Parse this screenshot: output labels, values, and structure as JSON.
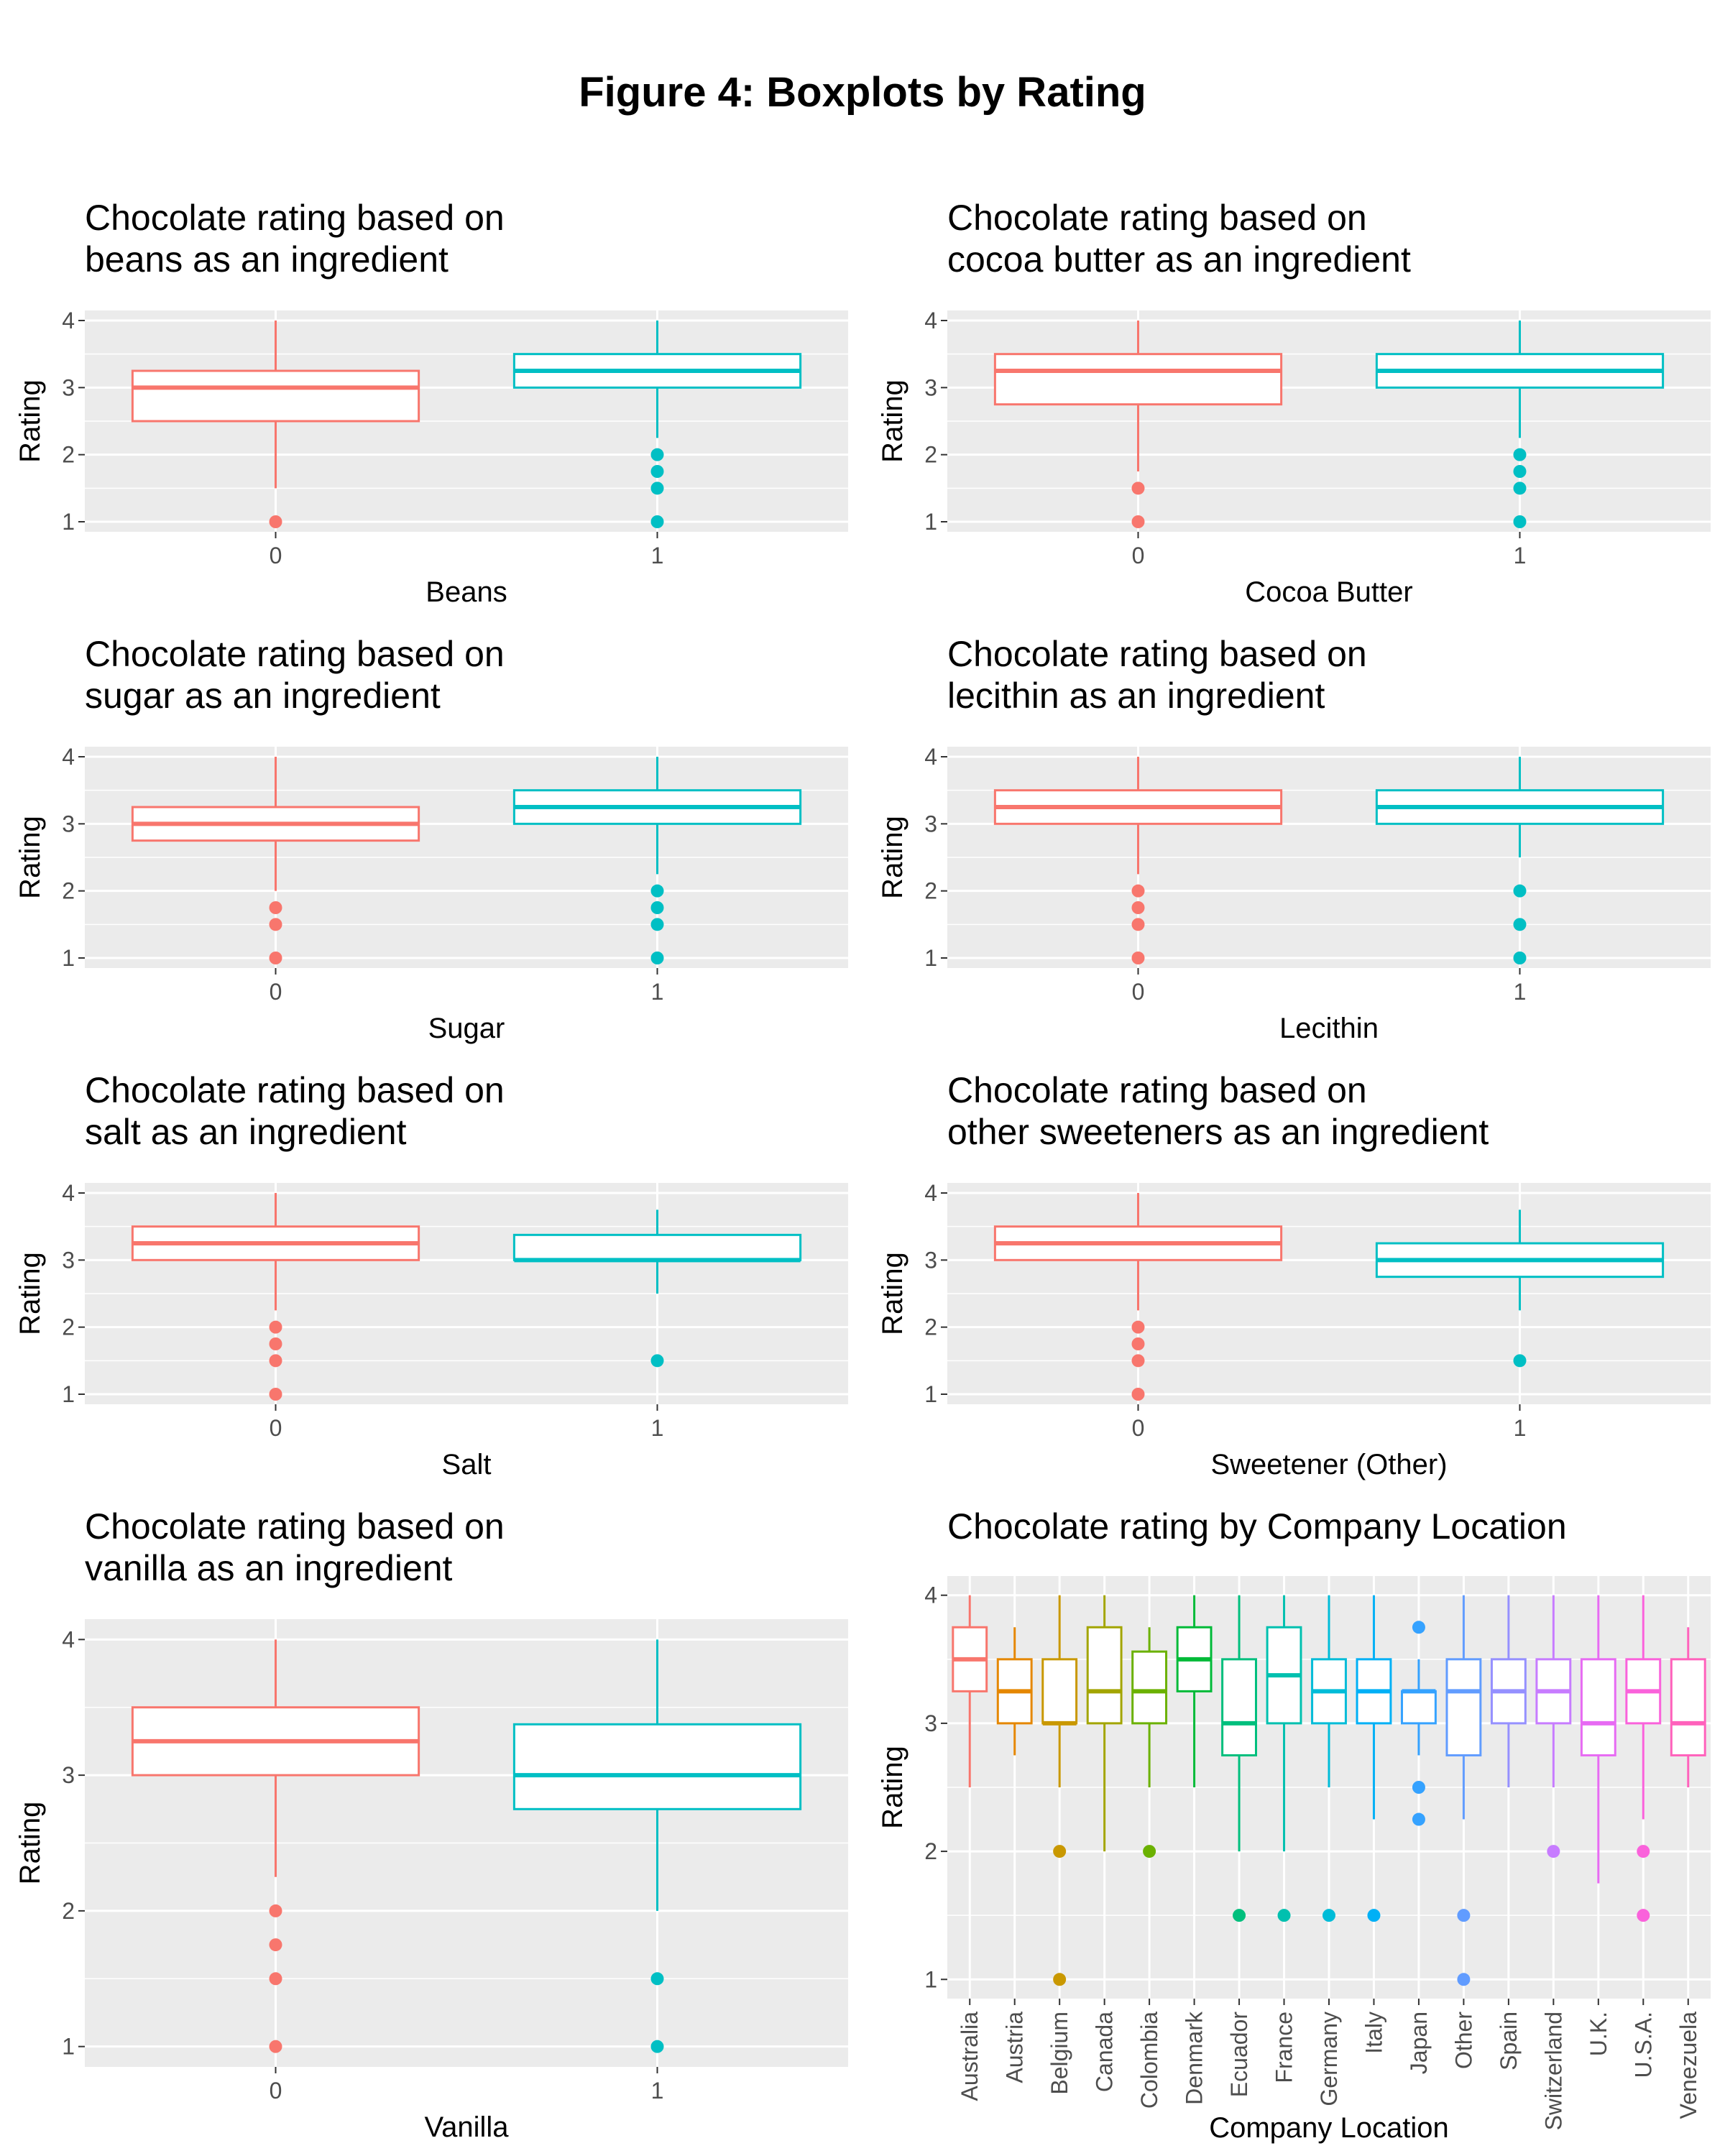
{
  "figure_title": "Figure 4: Boxplots by Rating",
  "colors": {
    "panel_bg": "#ebebeb",
    "grid": "#ffffff",
    "text": "#000000",
    "tick_text": "#4d4d4d"
  },
  "chart_data": [
    {
      "type": "boxplot",
      "title": [
        "Chocolate rating based on",
        " beans as an ingredient"
      ],
      "xlabel": "Beans",
      "ylabel": "Rating",
      "categories": [
        "0",
        "1"
      ],
      "yticks": [
        1,
        2,
        3,
        4
      ],
      "ylim": [
        0.85,
        4.15
      ],
      "boxes": [
        {
          "cat": "0",
          "lower": 1.5,
          "q1": 2.5,
          "median": 3.0,
          "q3": 3.25,
          "upper": 4.0,
          "outliers": [
            1.0
          ],
          "color": "#f8766d"
        },
        {
          "cat": "1",
          "lower": 2.25,
          "q1": 3.0,
          "median": 3.25,
          "q3": 3.5,
          "upper": 4.0,
          "outliers": [
            2.0,
            1.75,
            1.5,
            1.0
          ],
          "color": "#00bfc4"
        }
      ]
    },
    {
      "type": "boxplot",
      "title": [
        "Chocolate rating based on",
        " cocoa butter as an ingredient"
      ],
      "xlabel": "Cocoa Butter",
      "ylabel": "Rating",
      "categories": [
        "0",
        "1"
      ],
      "yticks": [
        1,
        2,
        3,
        4
      ],
      "ylim": [
        0.85,
        4.15
      ],
      "boxes": [
        {
          "cat": "0",
          "lower": 1.75,
          "q1": 2.75,
          "median": 3.25,
          "q3": 3.5,
          "upper": 4.0,
          "outliers": [
            1.5,
            1.0
          ],
          "color": "#f8766d"
        },
        {
          "cat": "1",
          "lower": 2.25,
          "q1": 3.0,
          "median": 3.25,
          "q3": 3.5,
          "upper": 4.0,
          "outliers": [
            2.0,
            1.75,
            1.5,
            1.0
          ],
          "color": "#00bfc4"
        }
      ]
    },
    {
      "type": "boxplot",
      "title": [
        "Chocolate rating based on",
        " sugar as an ingredient"
      ],
      "xlabel": "Sugar",
      "ylabel": "Rating",
      "categories": [
        "0",
        "1"
      ],
      "yticks": [
        1,
        2,
        3,
        4
      ],
      "ylim": [
        0.85,
        4.15
      ],
      "boxes": [
        {
          "cat": "0",
          "lower": 2.0,
          "q1": 2.75,
          "median": 3.0,
          "q3": 3.25,
          "upper": 4.0,
          "outliers": [
            1.75,
            1.5,
            1.0
          ],
          "color": "#f8766d"
        },
        {
          "cat": "1",
          "lower": 2.25,
          "q1": 3.0,
          "median": 3.25,
          "q3": 3.5,
          "upper": 4.0,
          "outliers": [
            2.0,
            1.75,
            1.5,
            1.0
          ],
          "color": "#00bfc4"
        }
      ]
    },
    {
      "type": "boxplot",
      "title": [
        "Chocolate rating based on",
        " lecithin as an ingredient"
      ],
      "xlabel": "Lecithin",
      "ylabel": "Rating",
      "categories": [
        "0",
        "1"
      ],
      "yticks": [
        1,
        2,
        3,
        4
      ],
      "ylim": [
        0.85,
        4.15
      ],
      "boxes": [
        {
          "cat": "0",
          "lower": 2.25,
          "q1": 3.0,
          "median": 3.25,
          "q3": 3.5,
          "upper": 4.0,
          "outliers": [
            2.0,
            1.75,
            1.5,
            1.0
          ],
          "color": "#f8766d"
        },
        {
          "cat": "1",
          "lower": 2.5,
          "q1": 3.0,
          "median": 3.25,
          "q3": 3.5,
          "upper": 4.0,
          "outliers": [
            2.0,
            1.5,
            1.0
          ],
          "color": "#00bfc4"
        }
      ]
    },
    {
      "type": "boxplot",
      "title": [
        "Chocolate rating based on",
        " salt as an ingredient"
      ],
      "xlabel": "Salt",
      "ylabel": "Rating",
      "categories": [
        "0",
        "1"
      ],
      "yticks": [
        1,
        2,
        3,
        4
      ],
      "ylim": [
        0.85,
        4.15
      ],
      "boxes": [
        {
          "cat": "0",
          "lower": 2.25,
          "q1": 3.0,
          "median": 3.25,
          "q3": 3.5,
          "upper": 4.0,
          "outliers": [
            2.0,
            1.75,
            1.5,
            1.0
          ],
          "color": "#f8766d"
        },
        {
          "cat": "1",
          "lower": 2.5,
          "q1": 3.0,
          "median": 3.0,
          "q3": 3.375,
          "upper": 3.75,
          "outliers": [
            1.5
          ],
          "color": "#00bfc4"
        }
      ]
    },
    {
      "type": "boxplot",
      "title": [
        "Chocolate rating based on",
        " other sweeteners as an ingredient"
      ],
      "xlabel": "Sweetener (Other)",
      "ylabel": "Rating",
      "categories": [
        "0",
        "1"
      ],
      "yticks": [
        1,
        2,
        3,
        4
      ],
      "ylim": [
        0.85,
        4.15
      ],
      "boxes": [
        {
          "cat": "0",
          "lower": 2.25,
          "q1": 3.0,
          "median": 3.25,
          "q3": 3.5,
          "upper": 4.0,
          "outliers": [
            2.0,
            1.75,
            1.5,
            1.0
          ],
          "color": "#f8766d"
        },
        {
          "cat": "1",
          "lower": 2.25,
          "q1": 2.75,
          "median": 3.0,
          "q3": 3.25,
          "upper": 3.75,
          "outliers": [
            1.5
          ],
          "color": "#00bfc4"
        }
      ]
    },
    {
      "type": "boxplot",
      "title": [
        "Chocolate rating based on",
        " vanilla as an ingredient"
      ],
      "xlabel": "Vanilla",
      "ylabel": "Rating",
      "categories": [
        "0",
        "1"
      ],
      "yticks": [
        1,
        2,
        3,
        4
      ],
      "ylim": [
        0.85,
        4.15
      ],
      "boxes": [
        {
          "cat": "0",
          "lower": 2.25,
          "q1": 3.0,
          "median": 3.25,
          "q3": 3.5,
          "upper": 4.0,
          "outliers": [
            2.0,
            1.75,
            1.5,
            1.0
          ],
          "color": "#f8766d"
        },
        {
          "cat": "1",
          "lower": 2.0,
          "q1": 2.75,
          "median": 3.0,
          "q3": 3.375,
          "upper": 4.0,
          "outliers": [
            1.5,
            1.0
          ],
          "color": "#00bfc4"
        }
      ]
    },
    {
      "type": "boxplot",
      "title": [
        "Chocolate rating by Company Location"
      ],
      "xlabel": "Company Location",
      "ylabel": "Rating",
      "rotate_xticks": true,
      "categories": [
        "Australia",
        "Austria",
        "Belgium",
        "Canada",
        "Colombia",
        "Denmark",
        "Ecuador",
        "France",
        "Germany",
        "Italy",
        "Japan",
        "Other",
        "Spain",
        "Switzerland",
        "U.K.",
        "U.S.A.",
        "Venezuela"
      ],
      "yticks": [
        1,
        2,
        3,
        4
      ],
      "ylim": [
        0.85,
        4.15
      ],
      "boxes": [
        {
          "cat": "Australia",
          "lower": 2.5,
          "q1": 3.25,
          "median": 3.5,
          "q3": 3.75,
          "upper": 4.0,
          "outliers": [],
          "color": "#f8766d"
        },
        {
          "cat": "Austria",
          "lower": 2.75,
          "q1": 3.0,
          "median": 3.25,
          "q3": 3.5,
          "upper": 3.75,
          "outliers": [],
          "color": "#e58700"
        },
        {
          "cat": "Belgium",
          "lower": 2.5,
          "q1": 3.0,
          "median": 3.0,
          "q3": 3.5,
          "upper": 4.0,
          "outliers": [
            2.0,
            1.0
          ],
          "color": "#c99800"
        },
        {
          "cat": "Canada",
          "lower": 2.0,
          "q1": 3.0,
          "median": 3.25,
          "q3": 3.75,
          "upper": 4.0,
          "outliers": [],
          "color": "#a3a500"
        },
        {
          "cat": "Colombia",
          "lower": 2.5,
          "q1": 3.0,
          "median": 3.25,
          "q3": 3.56,
          "upper": 3.75,
          "outliers": [
            2.0
          ],
          "color": "#6bb100"
        },
        {
          "cat": "Denmark",
          "lower": 2.5,
          "q1": 3.25,
          "median": 3.5,
          "q3": 3.75,
          "upper": 4.0,
          "outliers": [],
          "color": "#00ba38"
        },
        {
          "cat": "Ecuador",
          "lower": 2.0,
          "q1": 2.75,
          "median": 3.0,
          "q3": 3.5,
          "upper": 4.0,
          "outliers": [
            1.5
          ],
          "color": "#00bf7d"
        },
        {
          "cat": "France",
          "lower": 2.0,
          "q1": 3.0,
          "median": 3.375,
          "q3": 3.75,
          "upper": 4.0,
          "outliers": [
            1.5
          ],
          "color": "#00c0af"
        },
        {
          "cat": "Germany",
          "lower": 2.5,
          "q1": 3.0,
          "median": 3.25,
          "q3": 3.5,
          "upper": 4.0,
          "outliers": [
            1.5
          ],
          "color": "#00bcd8"
        },
        {
          "cat": "Italy",
          "lower": 2.25,
          "q1": 3.0,
          "median": 3.25,
          "q3": 3.5,
          "upper": 4.0,
          "outliers": [
            1.5
          ],
          "color": "#00b0f6"
        },
        {
          "cat": "Japan",
          "lower": 2.75,
          "q1": 3.0,
          "median": 3.25,
          "q3": 3.25,
          "upper": 3.5,
          "outliers": [
            3.75,
            2.5,
            2.25
          ],
          "color": "#35a2ff"
        },
        {
          "cat": "Other",
          "lower": 2.25,
          "q1": 2.75,
          "median": 3.25,
          "q3": 3.5,
          "upper": 4.0,
          "outliers": [
            1.5,
            1.0
          ],
          "color": "#619cff"
        },
        {
          "cat": "Spain",
          "lower": 2.5,
          "q1": 3.0,
          "median": 3.25,
          "q3": 3.5,
          "upper": 4.0,
          "outliers": [],
          "color": "#9590ff"
        },
        {
          "cat": "Switzerland",
          "lower": 2.5,
          "q1": 3.0,
          "median": 3.25,
          "q3": 3.5,
          "upper": 4.0,
          "outliers": [
            2.0
          ],
          "color": "#c77cff"
        },
        {
          "cat": "U.K.",
          "lower": 1.75,
          "q1": 2.75,
          "median": 3.0,
          "q3": 3.5,
          "upper": 4.0,
          "outliers": [],
          "color": "#e76bf3"
        },
        {
          "cat": "U.S.A.",
          "lower": 2.25,
          "q1": 3.0,
          "median": 3.25,
          "q3": 3.5,
          "upper": 4.0,
          "outliers": [
            2.0,
            1.5
          ],
          "color": "#fa62db"
        },
        {
          "cat": "Venezuela",
          "lower": 2.5,
          "q1": 2.75,
          "median": 3.0,
          "q3": 3.5,
          "upper": 3.75,
          "outliers": [],
          "color": "#ff62bc"
        }
      ]
    }
  ]
}
